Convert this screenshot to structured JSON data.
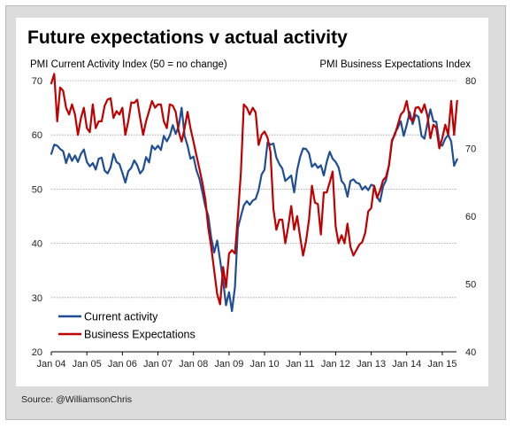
{
  "chart_data": {
    "type": "line",
    "title": "Future expectations v actual activity",
    "ylabel_left": "PMI Current Activity Index  (50 = no change)",
    "ylabel_right": "PMI Business Expectations Index",
    "x_tick_labels": [
      "Jan 04",
      "Jan 05",
      "Jan 06",
      "Jan 07",
      "Jan 08",
      "Jan 09",
      "Jan 10",
      "Jan 11",
      "Jan 12",
      "Jan 13",
      "Jan 14",
      "Jan 15"
    ],
    "y_left_ticks": [
      20,
      30,
      40,
      50,
      60,
      70
    ],
    "y_right_ticks": [
      40,
      50,
      60,
      70,
      80
    ],
    "y_left_lim": [
      20,
      70
    ],
    "y_right_lim": [
      40,
      80
    ],
    "grid": "horizontal",
    "legend_position": "bottom-left",
    "x_start": 2004.0,
    "x_step": 0.08333,
    "series": [
      {
        "name": "Current activity",
        "axis": "left",
        "color": "#1f4e94",
        "values": [
          56.5,
          58.2,
          58.0,
          57.4,
          57.0,
          54.8,
          56.5,
          55.2,
          56.2,
          55.0,
          56.5,
          57.3,
          55.0,
          54.2,
          54.8,
          53.6,
          55.6,
          55.8,
          53.4,
          52.9,
          54.0,
          56.5,
          55.0,
          54.6,
          53.0,
          51.2,
          53.3,
          53.9,
          55.3,
          54.4,
          52.9,
          53.6,
          55.9,
          54.9,
          58.0,
          57.3,
          58.0,
          57.2,
          59.8,
          58.8,
          59.8,
          61.8,
          60.2,
          61.6,
          65.0,
          59.8,
          58.0,
          55.6,
          56.0,
          53.5,
          51.9,
          49.5,
          46.8,
          45.1,
          41.0,
          38.3,
          40.5,
          36.9,
          33.0,
          28.6,
          31.0,
          27.5,
          32.0,
          42.8,
          45.0,
          47.0,
          47.8,
          47.1,
          47.9,
          48.2,
          49.8,
          52.7,
          53.6,
          58.6,
          58.2,
          58.4,
          55.8,
          54.6,
          53.8,
          51.5,
          52.0,
          52.5,
          49.4,
          53.5,
          55.9,
          57.5,
          57.4,
          56.6,
          54.1,
          54.7,
          53.9,
          54.4,
          52.5,
          55.0,
          56.9,
          55.6,
          55.0,
          54.0,
          51.5,
          50.8,
          48.6,
          51.5,
          51.8,
          51.2,
          51.0,
          49.9,
          50.5,
          49.8,
          50.8,
          50.6,
          48.5,
          47.7,
          50.5,
          51.6,
          54.4,
          58.7,
          60.3,
          61.3,
          62.5,
          59.8,
          61.8,
          64.2,
          62.0,
          63.7,
          63.3,
          59.8,
          59.3,
          62.2,
          64.7,
          62.5,
          62.4,
          58.5,
          58.0,
          59.3,
          60.0,
          58.8,
          54.3,
          55.5
        ]
      },
      {
        "name": "Business Expectations",
        "axis": "right",
        "color": "#c00000",
        "values": [
          79.6,
          81.0,
          74.0,
          79.0,
          78.5,
          76.0,
          75.0,
          76.5,
          75.0,
          72.0,
          74.5,
          76.0,
          73.0,
          72.4,
          76.5,
          73.0,
          74.0,
          74.0,
          76.3,
          77.2,
          77.4,
          74.5,
          75.5,
          75.0,
          76.0,
          72.0,
          74.0,
          76.8,
          76.7,
          77.2,
          74.5,
          72.0,
          74.0,
          75.5,
          77.0,
          76.0,
          76.5,
          76.5,
          74.0,
          73.0,
          76.5,
          76.3,
          75.4,
          72.5,
          71.0,
          73.0,
          75.4,
          73.0,
          71.0,
          69.0,
          67.0,
          65.0,
          62.5,
          58.3,
          55.4,
          52.0,
          48.5,
          47.0,
          52.5,
          49.5,
          54.5,
          55.0,
          54.5,
          60.0,
          66.5,
          76.5,
          76.0,
          75.0,
          76.0,
          75.3,
          70.5,
          72.0,
          72.5,
          71.6,
          69.5,
          61.0,
          58.0,
          59.5,
          59.5,
          56.0,
          58.5,
          61.5,
          58.0,
          60.0,
          57.0,
          54.2,
          56.3,
          59.5,
          64.5,
          62.0,
          61.8,
          57.3,
          63.5,
          63.5,
          65.0,
          66.6,
          58.5,
          56.0,
          57.2,
          56.0,
          58.9,
          55.5,
          54.2,
          55.0,
          55.8,
          56.2,
          57.6,
          60.7,
          61.2,
          64.5,
          62.7,
          63.8,
          65.3,
          65.8,
          67.5,
          71.2,
          72.0,
          73.5,
          75.0,
          75.5,
          77.0,
          74.5,
          74.0,
          76.0,
          76.1,
          75.3,
          76.5,
          74.8,
          71.5,
          73.5,
          73.0,
          70.0,
          71.5,
          73.5,
          72.0,
          77.0,
          72.0,
          77.0
        ]
      }
    ]
  },
  "source_text": "Source: @WilliamsonChris"
}
